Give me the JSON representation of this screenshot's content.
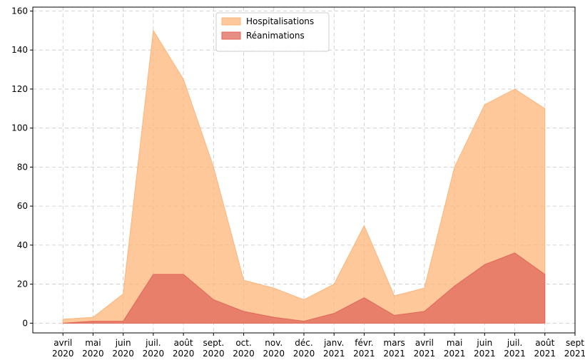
{
  "chart_data": {
    "type": "area",
    "x": [
      "2020-04",
      "2020-05",
      "2020-06",
      "2020-07",
      "2020-08",
      "2020-09",
      "2020-10",
      "2020-11",
      "2020-12",
      "2021-01",
      "2021-02",
      "2021-03",
      "2021-04",
      "2021-05",
      "2021-06",
      "2021-07",
      "2021-08"
    ],
    "series": [
      {
        "name": "Hospitalisations",
        "color": "#fdb57a",
        "values": [
          2,
          3,
          15,
          150,
          125,
          80,
          22,
          18,
          12,
          20,
          50,
          14,
          18,
          80,
          112,
          120,
          110
        ]
      },
      {
        "name": "Réanimations",
        "color": "#e0675a",
        "values": [
          0,
          1,
          1,
          25,
          25,
          12,
          6,
          3,
          1,
          5,
          13,
          4,
          6,
          19,
          30,
          36,
          25
        ]
      }
    ],
    "xlim": [
      "2020-03",
      "2021-09"
    ],
    "xticks": [
      {
        "value": "2020-04",
        "label": "avril 2020"
      },
      {
        "value": "2020-05",
        "label": "mai 2020"
      },
      {
        "value": "2020-06",
        "label": "juin 2020"
      },
      {
        "value": "2020-07",
        "label": "juil. 2020"
      },
      {
        "value": "2020-08",
        "label": "août 2020"
      },
      {
        "value": "2020-09",
        "label": "sept. 2020"
      },
      {
        "value": "2020-10",
        "label": "oct. 2020"
      },
      {
        "value": "2020-11",
        "label": "nov. 2020"
      },
      {
        "value": "2020-12",
        "label": "déc. 2020"
      },
      {
        "value": "2021-01",
        "label": "janv. 2021"
      },
      {
        "value": "2021-02",
        "label": "févr. 2021"
      },
      {
        "value": "2021-03",
        "label": "mars 2021"
      },
      {
        "value": "2021-04",
        "label": "avril 2021"
      },
      {
        "value": "2021-05",
        "label": "mai 2021"
      },
      {
        "value": "2021-06",
        "label": "juin 2021"
      },
      {
        "value": "2021-07",
        "label": "juil. 2021"
      },
      {
        "value": "2021-08",
        "label": "août 2021"
      },
      {
        "value": "2021-09",
        "label": "sept 2021"
      }
    ],
    "ylim": [
      -5,
      162
    ],
    "yticks": [
      0,
      20,
      40,
      60,
      80,
      100,
      120,
      140,
      160
    ],
    "grid": true,
    "legend": "upper center"
  }
}
